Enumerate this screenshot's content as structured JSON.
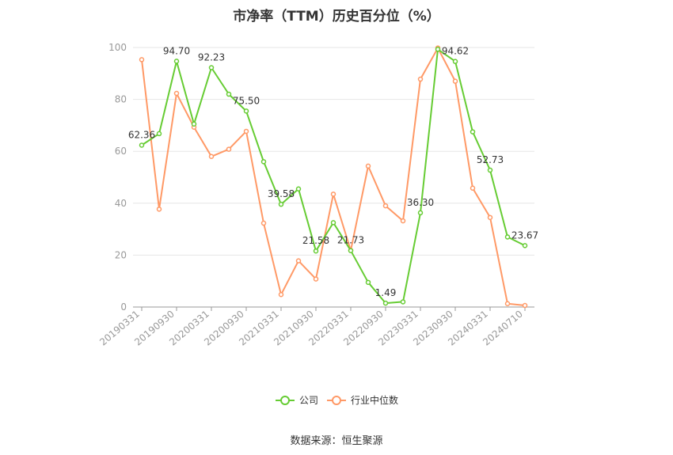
{
  "header": {
    "title": "市净率（TTM）历史百分位（%）"
  },
  "footer": {
    "source": "数据来源：恒生聚源"
  },
  "colors": {
    "company": "#66cc33",
    "industry": "#ff9966",
    "grid": "#e6e6e6",
    "axis": "#999999"
  },
  "chart_data": {
    "type": "line",
    "title": "市净率（TTM）历史百分位（%）",
    "xlabel": "",
    "ylabel": "",
    "ylim": [
      0,
      100
    ],
    "yticks": [
      0,
      20,
      40,
      60,
      80,
      100
    ],
    "grid": true,
    "legend": "bottom-center",
    "x": [
      "20190331",
      "20190630",
      "20190930",
      "20191231",
      "20200331",
      "20200630",
      "20200930",
      "20201231",
      "20210331",
      "20210630",
      "20210930",
      "20211231",
      "20220331",
      "20220630",
      "20220930",
      "20221231",
      "20230331",
      "20230630",
      "20230930",
      "20231231",
      "20240331",
      "20240630",
      "20240710"
    ],
    "xtick_labels": [
      "20190331",
      "20190930",
      "20200331",
      "20200930",
      "20210331",
      "20210930",
      "20220331",
      "20220930",
      "20230331",
      "20230930",
      "20240331",
      "20240710"
    ],
    "series": [
      {
        "name": "公司",
        "color": "#66cc33",
        "values": [
          62.36,
          66.8,
          94.7,
          70.5,
          92.23,
          82.0,
          75.5,
          56.0,
          39.58,
          45.5,
          21.58,
          32.5,
          21.73,
          9.5,
          1.49,
          2.0,
          36.3,
          99.3,
          94.62,
          67.5,
          52.73,
          27.0,
          23.67
        ],
        "labeled_points": {
          "0": "62.36",
          "2": "94.70",
          "4": "92.23",
          "6": "75.50",
          "8": "39.58",
          "10": "21.58",
          "12": "21.73",
          "14": "1.49",
          "16": "36.30",
          "18": "94.62",
          "20": "52.73",
          "22": "23.67"
        }
      },
      {
        "name": "行业中位数",
        "color": "#ff9966",
        "values": [
          95.3,
          37.7,
          82.3,
          69.3,
          58.0,
          60.8,
          67.7,
          32.3,
          4.8,
          17.8,
          10.8,
          43.5,
          21.8,
          54.3,
          39.0,
          33.2,
          87.8,
          99.8,
          87.0,
          45.8,
          34.5,
          1.3,
          0.6
        ]
      }
    ]
  }
}
